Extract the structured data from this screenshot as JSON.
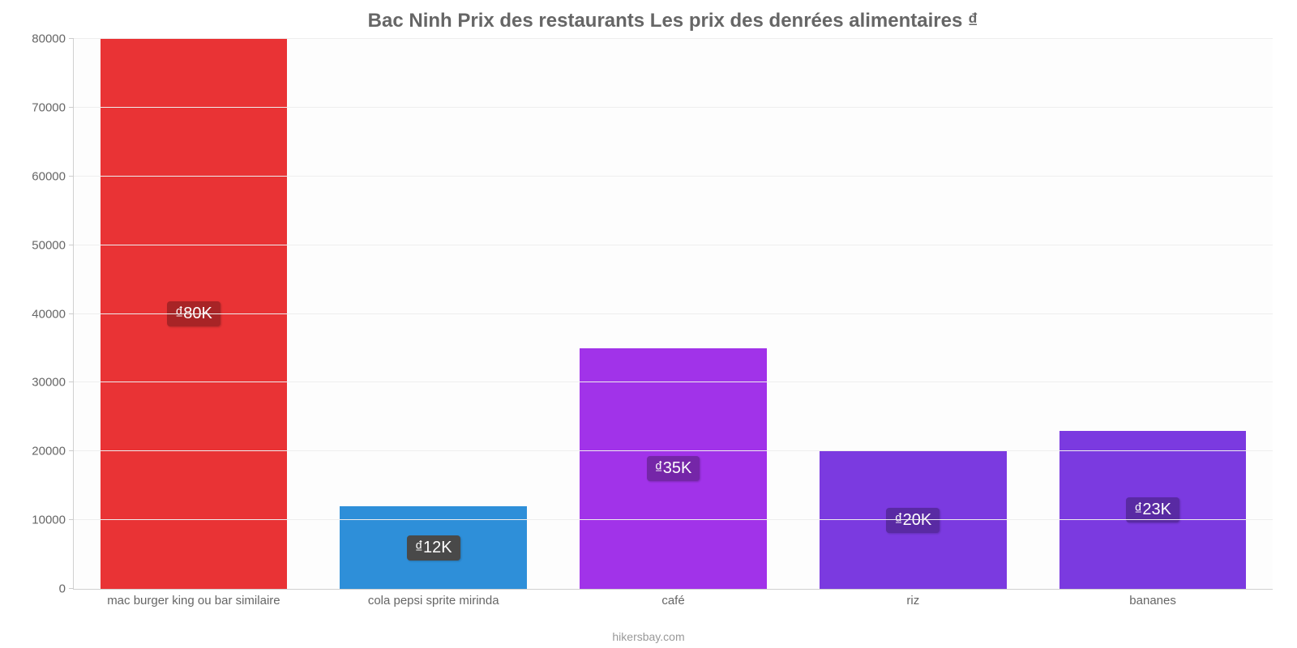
{
  "chart": {
    "type": "bar",
    "title": "Bac Ninh Prix des restaurants Les prix des denrées alimentaires ₫",
    "title_color": "#666666",
    "title_fontsize": 24,
    "attribution": "hikersbay.com",
    "attribution_color": "#999999",
    "background_color": "#ffffff",
    "plot_background": "#fdfdfd",
    "grid_color": "#eeeeee",
    "axis_color": "#d0d0d0",
    "y_axis": {
      "min": 0,
      "max": 80000,
      "tick_step": 10000,
      "ticks": [
        0,
        10000,
        20000,
        30000,
        40000,
        50000,
        60000,
        70000,
        80000
      ],
      "label_color": "#666666",
      "label_fontsize": 15
    },
    "x_axis": {
      "label_color": "#666666",
      "label_fontsize": 15
    },
    "bar_width_ratio": 0.78,
    "categories": [
      "mac burger king ou bar similaire",
      "cola pepsi sprite mirinda",
      "café",
      "riz",
      "bananes"
    ],
    "values": [
      80000,
      12000,
      35000,
      20000,
      23000
    ],
    "value_labels": [
      "₫80K",
      "₫12K",
      "₫35K",
      "₫20K",
      "₫23K"
    ],
    "bar_colors": [
      "#e93335",
      "#2e8fd9",
      "#a133e9",
      "#7b3ae0",
      "#7b3ae0"
    ],
    "badge_colors": [
      "#a82426",
      "#494949",
      "#7526a8",
      "#592aa3",
      "#592aa3"
    ],
    "badge_text_color": "#ffffff",
    "badge_fontsize": 20
  }
}
